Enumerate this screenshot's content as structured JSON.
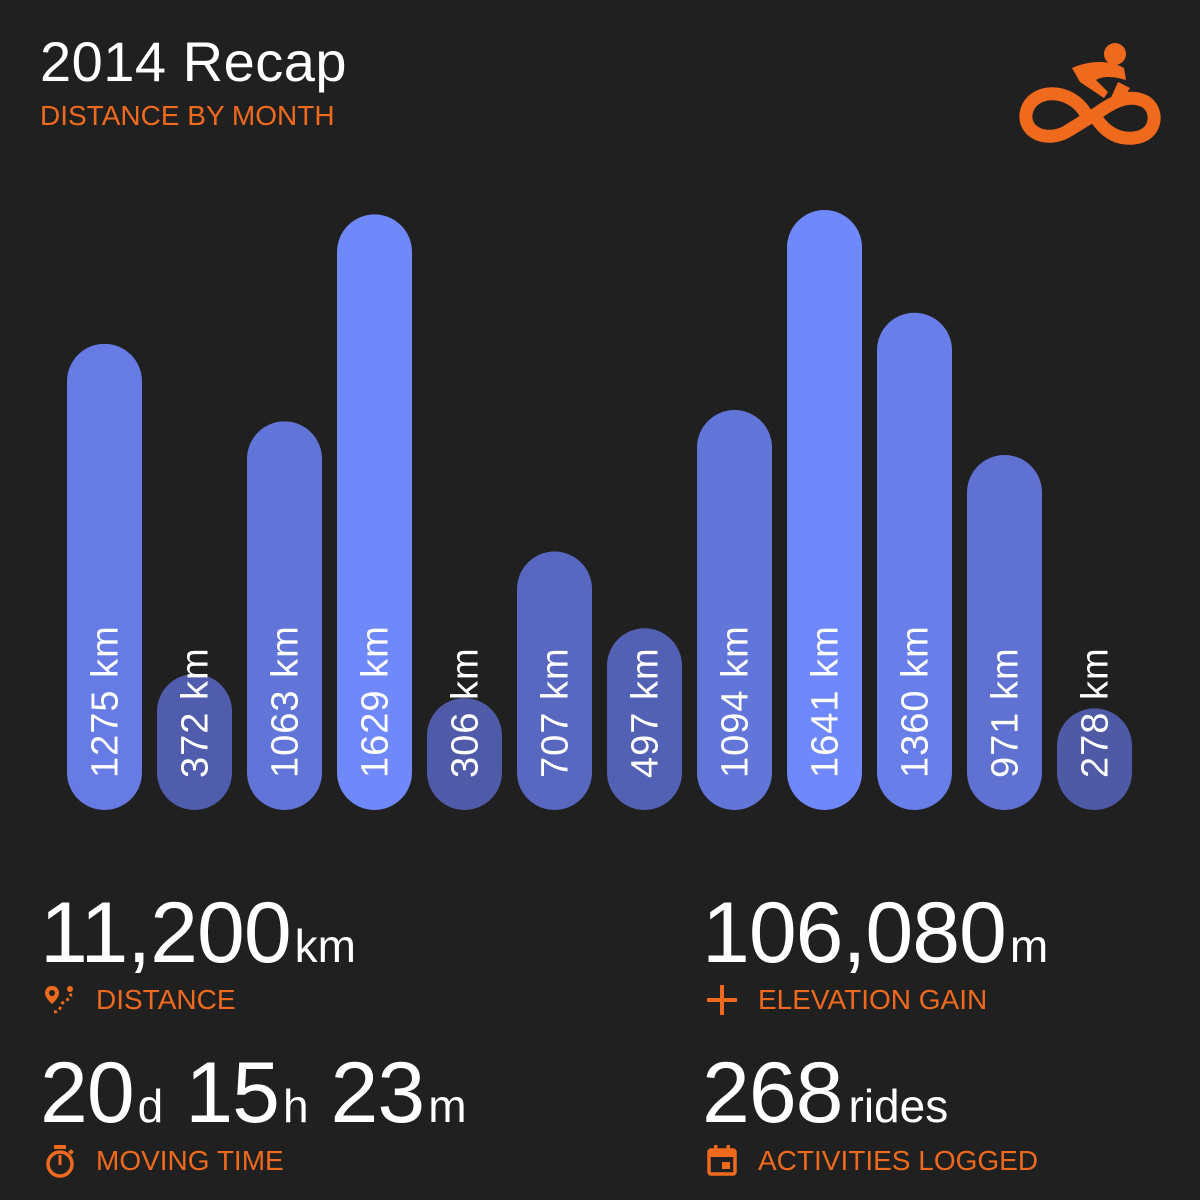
{
  "header": {
    "title": "2014 Recap",
    "subtitle": "DISTANCE BY MONTH",
    "logo_icon": "cyclist-logo-icon"
  },
  "colors": {
    "background": "#202020",
    "accent": "#f06a1e",
    "bar_low": "#4e5aa6",
    "bar_high": "#6f88fb",
    "text": "#ffffff"
  },
  "chart_data": {
    "type": "bar",
    "title": "DISTANCE BY MONTH",
    "categories": [],
    "values": [
      1275,
      372,
      1063,
      1629,
      306,
      707,
      497,
      1094,
      1641,
      1360,
      971,
      278
    ],
    "labels": [
      "1275 km",
      "372 km",
      "1063 km",
      "1629 km",
      "306 km",
      "707 km",
      "497 km",
      "1094 km",
      "1641 km",
      "1360 km",
      "971 km",
      "278 km"
    ],
    "unit": "km",
    "xlabel": "",
    "ylabel": "",
    "grid": false,
    "legend": "none"
  },
  "stats": {
    "distance": {
      "value": "11,200",
      "unit": "km",
      "label": "DISTANCE",
      "icon": "route-pin-icon"
    },
    "elevation": {
      "value": "106,080",
      "unit": "m",
      "label": "ELEVATION GAIN",
      "icon": "plus-icon"
    },
    "moving_time": {
      "days": "20",
      "days_unit": "d",
      "hours": "15",
      "hours_unit": "h",
      "minutes": "23",
      "minutes_unit": "m",
      "label": "MOVING TIME",
      "icon": "stopwatch-icon"
    },
    "rides": {
      "value": "268",
      "unit": "rides",
      "label": "ACTIVITIES LOGGED",
      "icon": "calendar-icon"
    }
  }
}
